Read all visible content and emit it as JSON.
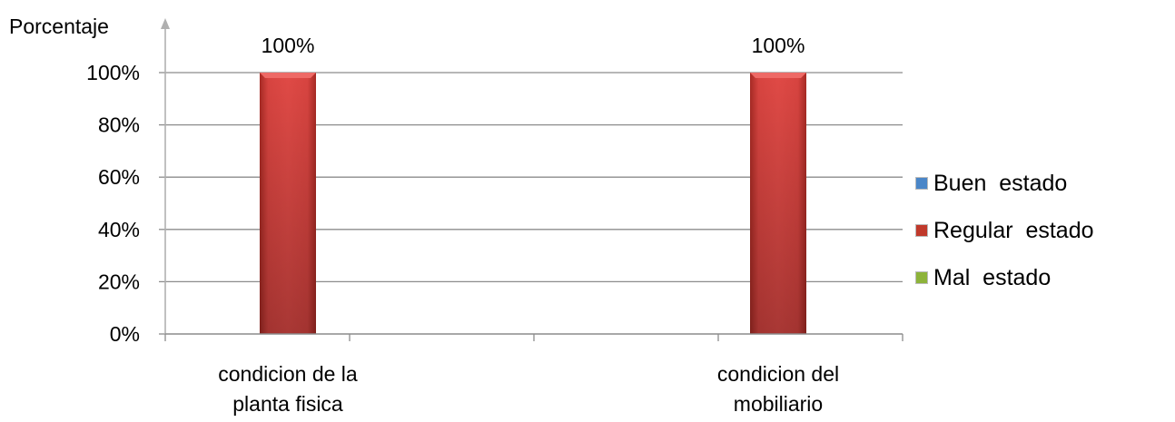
{
  "chart_data": {
    "type": "bar",
    "ylabel": "Porcentaje",
    "xlabel": "",
    "categories": [
      [
        "condicion de la",
        "planta fisica"
      ],
      [
        "condicion del",
        "mobiliario"
      ]
    ],
    "ylim": [
      0,
      100
    ],
    "yticks": [
      0,
      20,
      40,
      60,
      80,
      100
    ],
    "ytick_labels": [
      "0%",
      "20%",
      "40%",
      "60%",
      "80%",
      "100%"
    ],
    "grid": true,
    "legend_position": "right",
    "series": [
      {
        "name": "Buen  estado",
        "color": "#4a86c8",
        "values": [
          0,
          0
        ]
      },
      {
        "name": "Regular  estado",
        "color": "#c0392b",
        "values": [
          100,
          100
        ],
        "data_labels": [
          "100%",
          "100%"
        ]
      },
      {
        "name": "Mal  estado",
        "color": "#8db33a",
        "values": [
          0,
          0
        ]
      }
    ]
  }
}
